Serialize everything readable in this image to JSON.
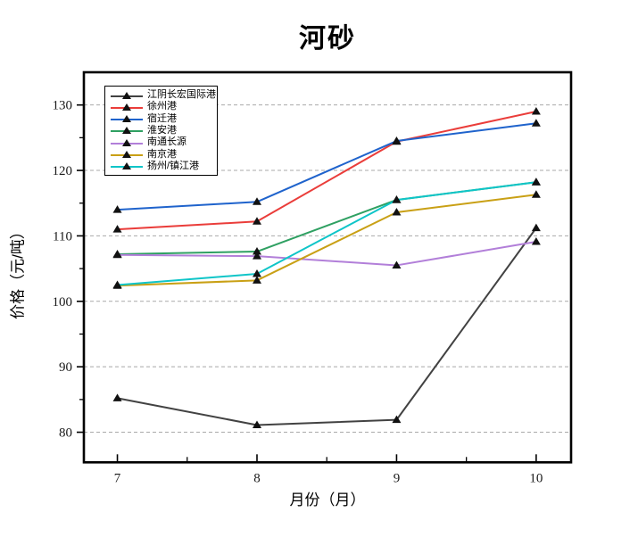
{
  "chart_data": {
    "type": "line",
    "title": "河砂",
    "xlabel": "月份（月）",
    "ylabel": "价格（元/吨）",
    "x": [
      7,
      8,
      9,
      10
    ],
    "xticks": [
      7,
      8,
      9,
      10
    ],
    "xminor": [
      7.5,
      8.5,
      9.5
    ],
    "yticks": [
      80,
      90,
      100,
      110,
      120,
      130
    ],
    "yminor": [
      85,
      95,
      105,
      115,
      125
    ],
    "xlim": [
      6.76,
      10.25
    ],
    "ylim": [
      75.4,
      135.0
    ],
    "grid": "horizontal dashed gridlines at each y major tick",
    "legend_position": "upper-left inside plot",
    "marker": "filled black triangle on every series",
    "marker_color": "#111111",
    "frame_color": "#000000",
    "gridline_color": "#a9a9a9",
    "series": [
      {
        "name": "江阴长宏国际港",
        "color": "#424242",
        "values": [
          85.2,
          81.1,
          81.9,
          111.2
        ]
      },
      {
        "name": "徐州港",
        "color": "#ea3d3a",
        "values": [
          111.0,
          112.2,
          124.4,
          129.0
        ]
      },
      {
        "name": "宿迁港",
        "color": "#1f63cc",
        "values": [
          114.0,
          115.2,
          124.5,
          127.2
        ]
      },
      {
        "name": "淮安港",
        "color": "#2fa062",
        "values": [
          107.2,
          107.6,
          115.5,
          118.2
        ]
      },
      {
        "name": "南通长源",
        "color": "#b27fd9",
        "values": [
          107.1,
          106.9,
          105.5,
          109.1
        ]
      },
      {
        "name": "南京港",
        "color": "#c9a015",
        "values": [
          102.4,
          103.2,
          113.6,
          116.3
        ]
      },
      {
        "name": "扬州/镇江港",
        "color": "#0fc5c8",
        "values": [
          102.5,
          104.2,
          115.5,
          118.2
        ]
      }
    ]
  }
}
